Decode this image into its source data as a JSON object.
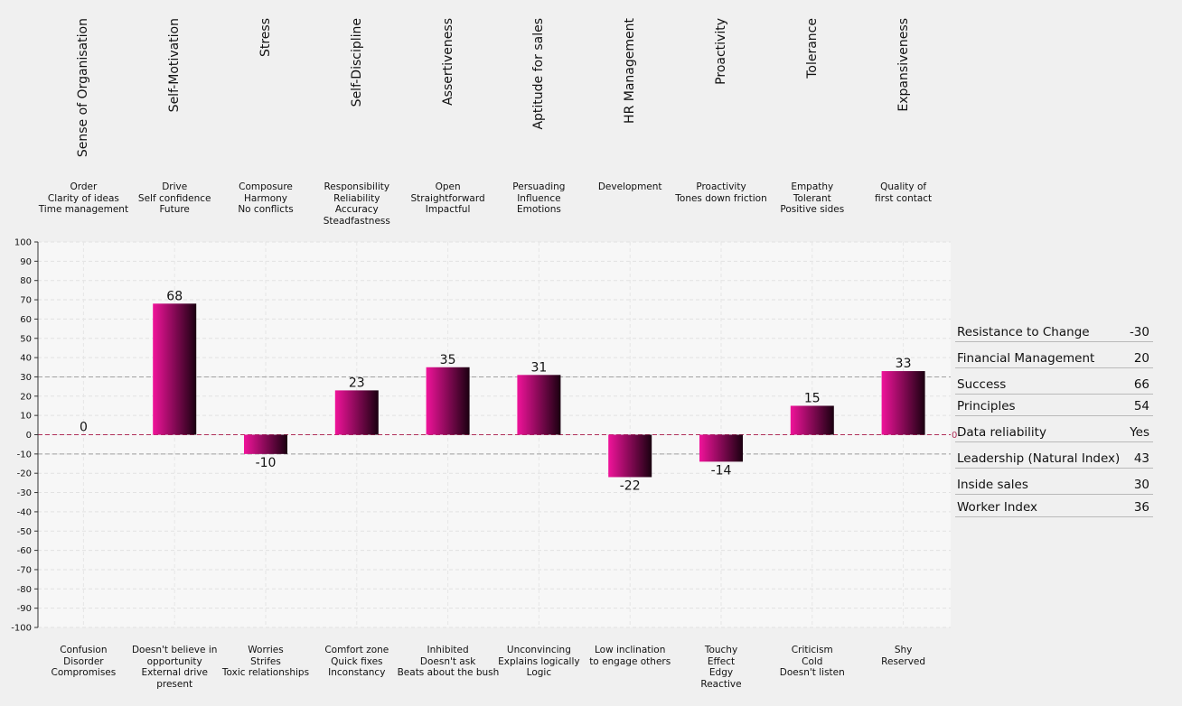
{
  "chart_data": {
    "type": "bar",
    "categories": [
      "Sense of Organisation",
      "Self-Motivation",
      "Stress",
      "Self-Discipline",
      "Assertiveness",
      "Aptitude for sales",
      "HR Management",
      "Proactivity",
      "Tolerance",
      "Expansiveness"
    ],
    "values": [
      0,
      68,
      -10,
      23,
      35,
      31,
      -22,
      -14,
      15,
      33
    ],
    "ylim": [
      -100,
      100
    ],
    "yticks": [
      100,
      90,
      80,
      70,
      60,
      50,
      40,
      30,
      20,
      10,
      0,
      -10,
      -20,
      -30,
      -40,
      -50,
      -60,
      -70,
      -80,
      -90,
      -100
    ],
    "reference_lines": [
      30,
      0,
      -10
    ],
    "right_axis_label": "0",
    "positive_descriptions": [
      [
        "Order",
        "Clarity of ideas",
        "Time management"
      ],
      [
        "Drive",
        "Self confidence",
        "Future"
      ],
      [
        "Composure",
        "Harmony",
        "No conflicts"
      ],
      [
        "Responsibility",
        "Reliability",
        "Accuracy",
        "Steadfastness"
      ],
      [
        "Open",
        "Straightforward",
        "Impactful"
      ],
      [
        "Persuading",
        "Influence",
        "Emotions"
      ],
      [
        "Development"
      ],
      [
        "Proactivity",
        "Tones down friction"
      ],
      [
        "Empathy",
        "Tolerant",
        "Positive sides"
      ],
      [
        "Quality of",
        "first contact"
      ]
    ],
    "negative_descriptions": [
      [
        "Confusion",
        "Disorder",
        "Compromises"
      ],
      [
        "Doesn't believe in",
        "opportunity",
        "External drive",
        "present"
      ],
      [
        "Worries",
        "Strifes",
        "Toxic relationships"
      ],
      [
        "Comfort zone",
        "Quick fixes",
        "Inconstancy"
      ],
      [
        "Inhibited",
        "Doesn't ask",
        "Beats about the bush"
      ],
      [
        "Unconvincing",
        "Explains logically",
        "Logic"
      ],
      [
        "Low inclination",
        "to engage others"
      ],
      [
        "Touchy",
        "Effect",
        "Edgy",
        "Reactive"
      ],
      [
        "Criticism",
        "Cold",
        "Doesn't listen"
      ],
      [
        "Shy",
        "Reserved"
      ]
    ],
    "colors": {
      "bar_light": "#f0139a",
      "bar_dark": "#1a0010",
      "plot_bg": "#f7f7f7",
      "zero_line": "#b0305a",
      "ref_line": "#a0a0a0"
    }
  },
  "side_table": [
    {
      "label": "Resistance to Change",
      "value": "-30"
    },
    {
      "label": "Financial Management",
      "value": "20"
    },
    {
      "label": "Success",
      "value": "66"
    },
    {
      "label": "Principles",
      "value": "54"
    },
    {
      "label": "Data reliability",
      "value": "Yes"
    },
    {
      "label": "Leadership (Natural Index)",
      "value": "43"
    },
    {
      "label": "Inside sales",
      "value": "30"
    },
    {
      "label": "Worker Index",
      "value": "36"
    }
  ]
}
